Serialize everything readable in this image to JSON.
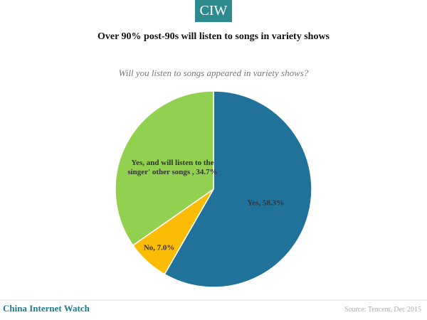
{
  "header": {
    "logo": "CIW"
  },
  "chart_data": {
    "type": "pie",
    "title": "Over 90% post-90s will listen to songs in variety shows",
    "subtitle": "Will you listen to songs appeared in variety shows?",
    "categories": [
      "Yes",
      "No",
      "Yes, and will listen to the singer' other songs"
    ],
    "values": [
      58.3,
      7.0,
      34.7
    ],
    "value_labels": [
      "Yes, 58.3%",
      "No, 7.0%",
      "Yes, and will listen to the singer' other songs , 34.7%"
    ],
    "colors": [
      "#20729a",
      "#fbbc05",
      "#92d050"
    ]
  },
  "footer": {
    "brand": "China Internet Watch",
    "source": "Source: Tencent, Dec 2015"
  }
}
